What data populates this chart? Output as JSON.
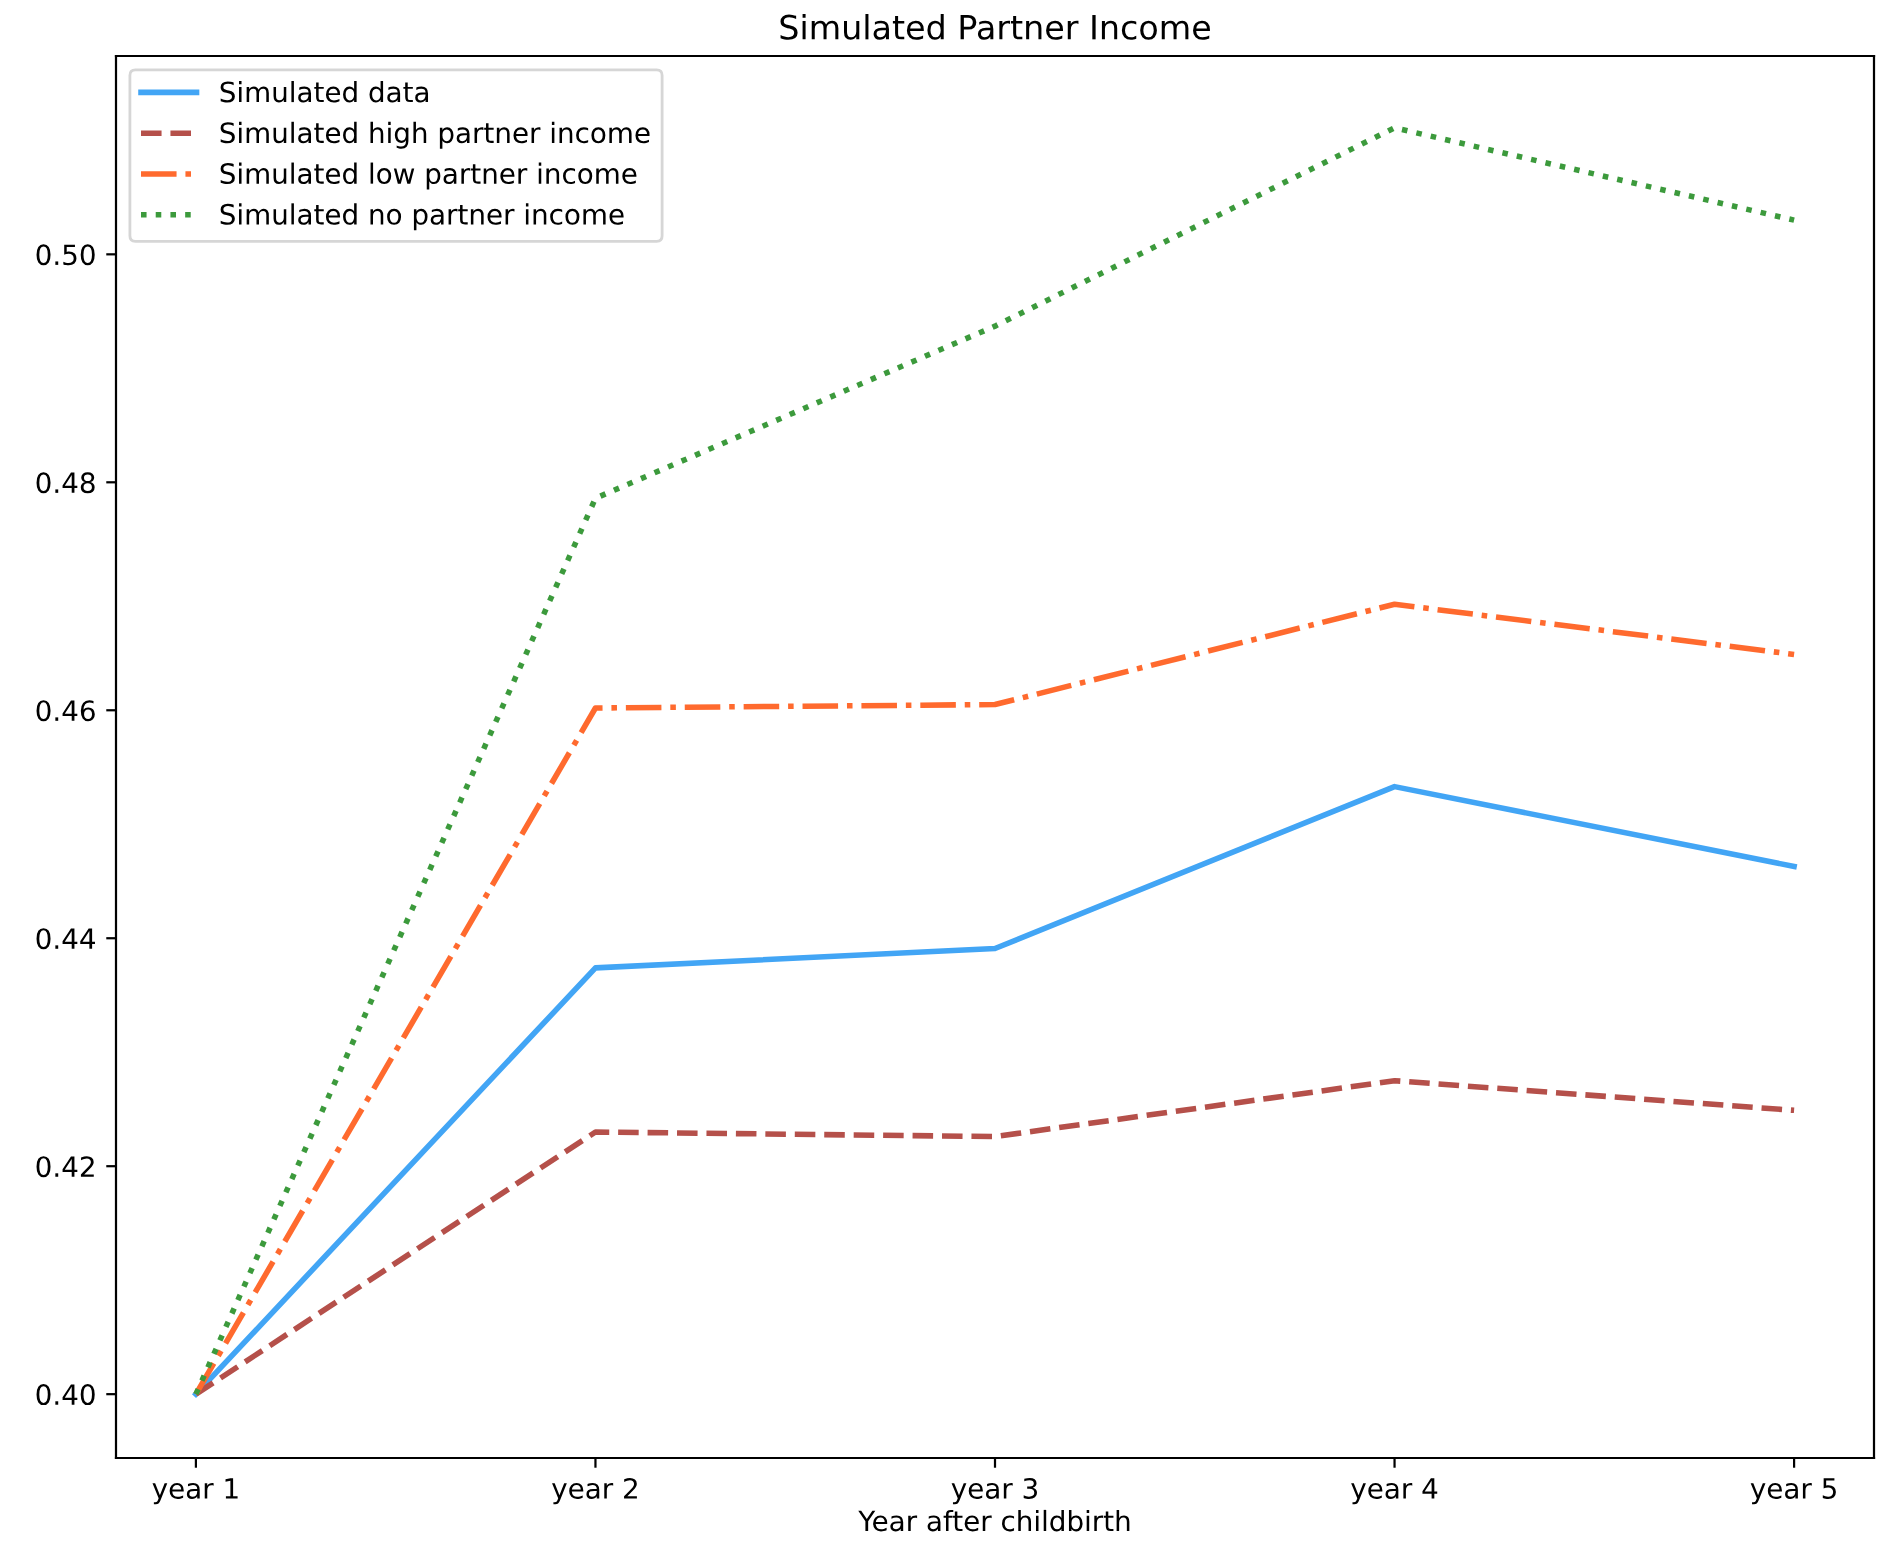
{
  "chart_data": {
    "type": "line",
    "title": "Simulated Partner Income",
    "xlabel": "Year after childbirth",
    "categories": [
      "year 1",
      "year 2",
      "year 3",
      "year 4",
      "year 5"
    ],
    "series": [
      {
        "name": "Simulated data",
        "color": "#42a5f5",
        "line_style": "solid",
        "values": [
          0.4,
          0.4374,
          0.4391,
          0.4533,
          0.4463
        ]
      },
      {
        "name": "Simulated high partner income",
        "color": "#b5504a",
        "line_style": "dashed",
        "values": [
          0.4,
          0.423,
          0.4226,
          0.4275,
          0.4249
        ]
      },
      {
        "name": "Simulated low partner income",
        "color": "#ff6a2e",
        "line_style": "dashdot",
        "values": [
          0.4,
          0.4602,
          0.4605,
          0.4693,
          0.4649
        ]
      },
      {
        "name": "Simulated no partner income",
        "color": "#3c9a3c",
        "line_style": "dotted",
        "values": [
          0.4,
          0.4786,
          0.4937,
          0.5111,
          0.503
        ]
      }
    ],
    "ylim": [
      0.3944,
      0.5174
    ],
    "yticks": [
      {
        "value": 0.4,
        "label": "0.40"
      },
      {
        "value": 0.42,
        "label": "0.42"
      },
      {
        "value": 0.44,
        "label": "0.44"
      },
      {
        "value": 0.46,
        "label": "0.46"
      },
      {
        "value": 0.48,
        "label": "0.48"
      },
      {
        "value": 0.5,
        "label": "0.50"
      }
    ],
    "grid": false,
    "legend": "top left"
  }
}
